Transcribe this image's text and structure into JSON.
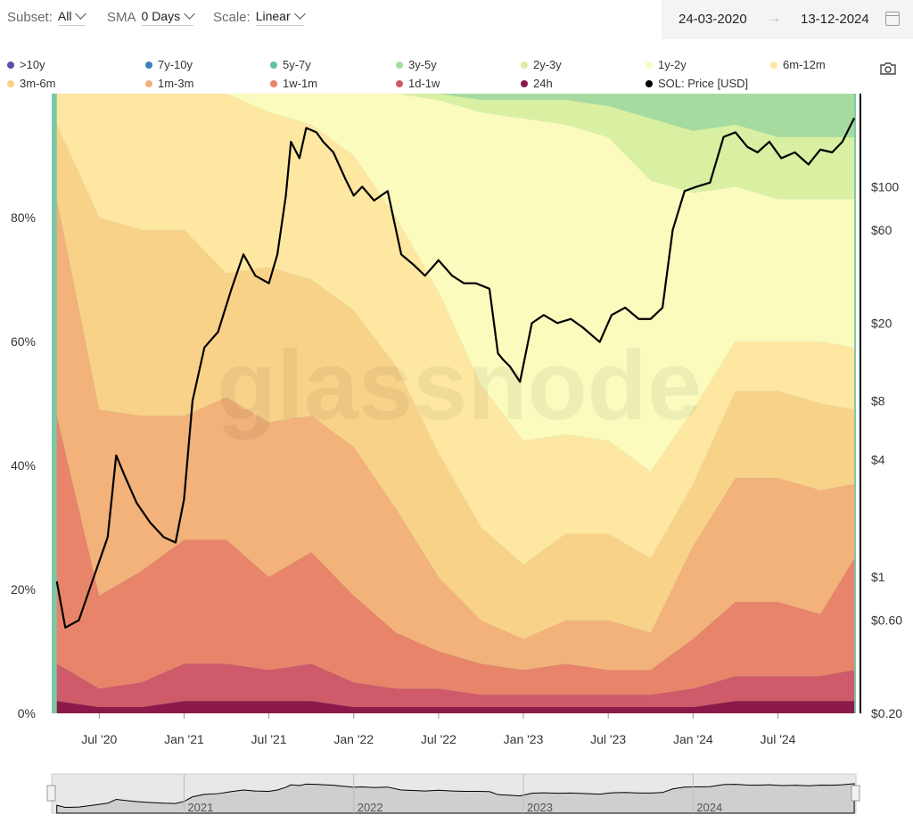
{
  "toolbar": {
    "subset_label": "Subset:",
    "subset_value": "All",
    "sma_label": "SMA",
    "sma_value": "0 Days",
    "scale_label": "Scale:",
    "scale_value": "Linear",
    "date_from": "24-03-2020",
    "date_to": "13-12-2024"
  },
  "watermark": "glassnode",
  "chart_data": {
    "type": "area",
    "stacked": true,
    "legend_position": "top",
    "legend": [
      {
        "name": ">10y",
        "color": "#5b4fa8"
      },
      {
        "name": "7y-10y",
        "color": "#3f7fc0"
      },
      {
        "name": "5y-7y",
        "color": "#63bfa9"
      },
      {
        "name": "3y-5y",
        "color": "#a6dba0"
      },
      {
        "name": "2y-3y",
        "color": "#d9f0a3"
      },
      {
        "name": "1y-2y",
        "color": "#fafbbd"
      },
      {
        "name": "6m-12m",
        "color": "#fde7a1"
      },
      {
        "name": "3m-6m",
        "color": "#f9d28a"
      },
      {
        "name": "1m-3m",
        "color": "#f2b27a"
      },
      {
        "name": "1w-1m",
        "color": "#e8846a"
      },
      {
        "name": "1d-1w",
        "color": "#cf5a6a"
      },
      {
        "name": "24h",
        "color": "#8b1a4a"
      },
      {
        "name": "SOL: Price [USD]",
        "color": "#000000"
      }
    ],
    "x_ticks": [
      "Jul '20",
      "Jan '21",
      "Jul '21",
      "Jan '22",
      "Jul '22",
      "Jan '23",
      "Jul '23",
      "Jan '24",
      "Jul '24"
    ],
    "y_left_ticks": [
      "0%",
      "20%",
      "40%",
      "60%",
      "80%"
    ],
    "y_right_ticks": [
      "$0.20",
      "$0.60",
      "$1",
      "$4",
      "$8",
      "$20",
      "$60",
      "$100"
    ],
    "ylim_left": [
      0,
      100
    ],
    "y_right_scale": "log",
    "x": [
      2020.25,
      2020.5,
      2020.75,
      2021.0,
      2021.25,
      2021.5,
      2021.75,
      2022.0,
      2022.25,
      2022.5,
      2022.75,
      2023.0,
      2023.25,
      2023.5,
      2023.75,
      2024.0,
      2024.25,
      2024.5,
      2024.75,
      2024.95
    ],
    "series": [
      {
        "name": "24h",
        "values": [
          2,
          1,
          1,
          2,
          2,
          2,
          2,
          1,
          1,
          1,
          1,
          1,
          1,
          1,
          1,
          1,
          2,
          2,
          2,
          2
        ]
      },
      {
        "name": "1d-1w",
        "values": [
          6,
          3,
          4,
          6,
          6,
          5,
          6,
          4,
          3,
          3,
          2,
          2,
          2,
          2,
          2,
          3,
          4,
          4,
          4,
          5
        ]
      },
      {
        "name": "1w-1m",
        "values": [
          40,
          15,
          18,
          20,
          20,
          15,
          18,
          14,
          9,
          6,
          5,
          4,
          5,
          4,
          4,
          8,
          12,
          12,
          10,
          18
        ]
      },
      {
        "name": "1m-3m",
        "values": [
          35,
          30,
          25,
          20,
          23,
          25,
          22,
          24,
          20,
          12,
          7,
          5,
          7,
          8,
          6,
          15,
          20,
          20,
          20,
          12
        ]
      },
      {
        "name": "3m-6m",
        "values": [
          12,
          31,
          30,
          30,
          20,
          25,
          22,
          22,
          23,
          20,
          15,
          12,
          14,
          14,
          12,
          10,
          14,
          14,
          14,
          12
        ]
      },
      {
        "name": "6m-12m",
        "values": [
          5,
          20,
          22,
          22,
          29,
          25,
          25,
          25,
          24,
          26,
          23,
          20,
          16,
          15,
          14,
          12,
          8,
          8,
          10,
          10
        ]
      },
      {
        "name": "1y-2y",
        "values": [
          0,
          0,
          0,
          0,
          0,
          3,
          5,
          10,
          20,
          31,
          44,
          52,
          50,
          49,
          47,
          35,
          25,
          23,
          23,
          24
        ]
      },
      {
        "name": "2y-3y",
        "values": [
          0,
          0,
          0,
          0,
          0,
          0,
          0,
          0,
          0,
          1,
          2,
          3,
          4,
          5,
          10,
          10,
          10,
          10,
          10,
          10
        ]
      },
      {
        "name": "3y-5y",
        "values": [
          0,
          0,
          0,
          0,
          0,
          0,
          0,
          0,
          0,
          0,
          1,
          1,
          1,
          2,
          4,
          6,
          5,
          7,
          7,
          7
        ]
      }
    ],
    "price": {
      "name": "SOL: Price [USD]",
      "x": [
        2020.25,
        2020.3,
        2020.38,
        2020.45,
        2020.55,
        2020.6,
        2020.65,
        2020.72,
        2020.8,
        2020.88,
        2020.95,
        2021.0,
        2021.05,
        2021.12,
        2021.2,
        2021.28,
        2021.35,
        2021.42,
        2021.5,
        2021.55,
        2021.6,
        2021.63,
        2021.68,
        2021.72,
        2021.78,
        2021.82,
        2021.88,
        2021.95,
        2022.0,
        2022.05,
        2022.12,
        2022.2,
        2022.28,
        2022.35,
        2022.42,
        2022.5,
        2022.58,
        2022.65,
        2022.72,
        2022.8,
        2022.85,
        2022.88,
        2022.92,
        2022.98,
        2023.05,
        2023.12,
        2023.2,
        2023.28,
        2023.35,
        2023.45,
        2023.52,
        2023.6,
        2023.68,
        2023.75,
        2023.82,
        2023.88,
        2023.95,
        2024.02,
        2024.1,
        2024.18,
        2024.25,
        2024.32,
        2024.38,
        2024.45,
        2024.52,
        2024.6,
        2024.68,
        2024.75,
        2024.82,
        2024.88,
        2024.95
      ],
      "values": [
        0.95,
        0.55,
        0.6,
        0.9,
        1.6,
        4.2,
        3.3,
        2.4,
        1.9,
        1.6,
        1.5,
        2.5,
        8,
        15,
        18,
        30,
        45,
        35,
        32,
        45,
        90,
        170,
        140,
        200,
        190,
        170,
        150,
        110,
        90,
        100,
        85,
        95,
        45,
        40,
        35,
        42,
        35,
        32,
        32,
        30,
        14,
        13,
        12,
        10,
        20,
        22,
        20,
        21,
        19,
        16,
        22,
        24,
        21,
        21,
        24,
        60,
        95,
        100,
        105,
        180,
        190,
        160,
        150,
        170,
        140,
        150,
        130,
        155,
        150,
        170,
        225
      ]
    },
    "navigator": {
      "labels": [
        "2021",
        "2022",
        "2023",
        "2024"
      ]
    }
  }
}
